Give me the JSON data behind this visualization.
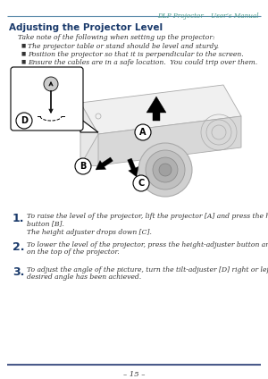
{
  "bg_color": "#ffffff",
  "header_line_color": "#5a8aaa",
  "header_text": "DLP Projector – User’s Manual",
  "header_text_color": "#4a9a8a",
  "section_title": "Adjusting the Projector Level",
  "section_title_color": "#1a3a6b",
  "body_intro": "Take note of the following when setting up the projector:",
  "bullets": [
    "The projector table or stand should be level and sturdy.",
    "Position the projector so that it is perpendicular to the screen.",
    "Ensure the cables are in a safe location.  You could trip over them."
  ],
  "step1_num": "1.",
  "step1_line1": "To raise the level of the projector, lift the projector [A] and press the height-adjuster",
  "step1_line2": "button [B].",
  "step1_line3": "The height adjuster drops down [C].",
  "step2_num": "2.",
  "step2_line1": "To lower the level of the projector, press the height-adjuster button and push down",
  "step2_line2": "on the top of the projector.",
  "step3_num": "3.",
  "step3_line1": "To adjust the angle of the picture, turn the tilt-adjuster [D] right or left until the",
  "step3_line2": "desired angle has been achieved.",
  "footer_line_color": "#4a5a8a",
  "footer_text": "– 15 –",
  "body_text_color": "#333333"
}
